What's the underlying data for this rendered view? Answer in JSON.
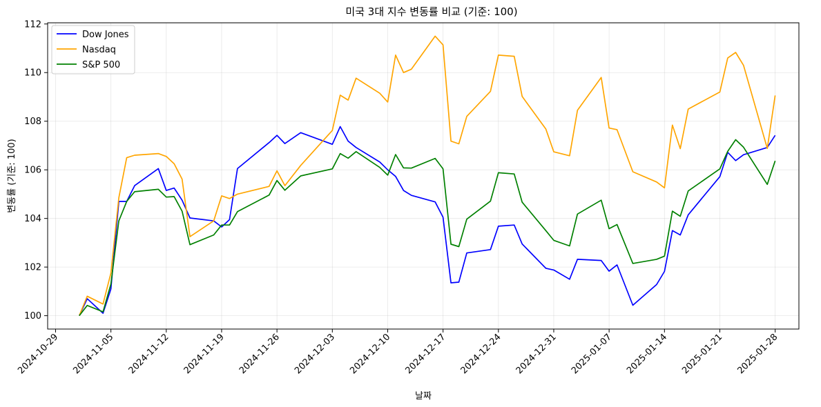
{
  "chart_data": {
    "type": "line",
    "title": "미국 3대 지수 변동률 비교 (기준: 100)",
    "xlabel": "날짜",
    "ylabel": "변동률 (기준: 100)",
    "xlim": [
      "2024-10-28",
      "2025-01-31"
    ],
    "ylim": [
      99.45,
      112.05
    ],
    "x_ticks": [
      "2024-10-29",
      "2024-11-05",
      "2024-11-12",
      "2024-11-19",
      "2024-11-26",
      "2024-12-03",
      "2024-12-10",
      "2024-12-17",
      "2024-12-24",
      "2024-12-31",
      "2025-01-07",
      "2025-01-14",
      "2025-01-21",
      "2025-01-28"
    ],
    "y_ticks": [
      100,
      102,
      104,
      106,
      108,
      110,
      112
    ],
    "grid": true,
    "legend_position": "top-left",
    "dates": [
      "2024-11-01",
      "2024-11-02",
      "2024-11-04",
      "2024-11-05",
      "2024-11-06",
      "2024-11-07",
      "2024-11-08",
      "2024-11-11",
      "2024-11-12",
      "2024-11-13",
      "2024-11-14",
      "2024-11-15",
      "2024-11-18",
      "2024-11-19",
      "2024-11-20",
      "2024-11-21",
      "2024-11-25",
      "2024-11-26",
      "2024-11-27",
      "2024-11-29",
      "2024-12-03",
      "2024-12-04",
      "2024-12-05",
      "2024-12-06",
      "2024-12-09",
      "2024-12-10",
      "2024-12-11",
      "2024-12-12",
      "2024-12-13",
      "2024-12-16",
      "2024-12-17",
      "2024-12-18",
      "2024-12-19",
      "2024-12-20",
      "2024-12-23",
      "2024-12-24",
      "2024-12-26",
      "2024-12-27",
      "2024-12-30",
      "2024-12-31",
      "2025-01-02",
      "2025-01-03",
      "2025-01-06",
      "2025-01-07",
      "2025-01-08",
      "2025-01-10",
      "2025-01-13",
      "2025-01-14",
      "2025-01-15",
      "2025-01-16",
      "2025-01-17",
      "2025-01-21",
      "2025-01-22",
      "2025-01-23",
      "2025-01-24",
      "2025-01-27",
      "2025-01-28"
    ],
    "series": [
      {
        "name": "Dow Jones",
        "color": "#0000ff",
        "values": [
          100.0,
          100.7,
          100.1,
          101.1,
          104.7,
          104.7,
          105.35,
          106.05,
          105.15,
          105.25,
          104.75,
          104.02,
          103.9,
          103.65,
          103.95,
          106.05,
          107.12,
          107.42,
          107.08,
          107.53,
          107.05,
          107.78,
          107.18,
          106.92,
          106.32,
          106.0,
          105.73,
          105.15,
          104.95,
          104.68,
          104.05,
          101.35,
          101.38,
          102.58,
          102.72,
          103.68,
          103.73,
          102.95,
          101.95,
          101.88,
          101.5,
          102.32,
          102.27,
          101.83,
          102.09,
          100.43,
          101.28,
          101.82,
          103.5,
          103.32,
          104.15,
          105.72,
          106.72,
          106.38,
          106.62,
          106.92,
          107.42
        ]
      },
      {
        "name": "Nasdaq",
        "color": "#ffa500",
        "values": [
          100.0,
          100.8,
          100.48,
          101.75,
          104.85,
          106.5,
          106.6,
          106.67,
          106.55,
          106.25,
          105.62,
          103.25,
          103.9,
          104.93,
          104.82,
          105.0,
          105.32,
          105.96,
          105.35,
          106.18,
          107.62,
          109.07,
          108.87,
          109.77,
          109.15,
          108.79,
          110.72,
          110.0,
          110.14,
          111.5,
          111.14,
          107.18,
          107.07,
          108.2,
          109.23,
          110.72,
          110.67,
          109.02,
          107.68,
          106.74,
          106.58,
          108.45,
          109.8,
          107.72,
          107.65,
          105.92,
          105.5,
          105.26,
          107.84,
          106.87,
          108.5,
          109.2,
          110.6,
          110.83,
          110.3,
          106.88,
          109.06
        ]
      },
      {
        "name": "S&P 500",
        "color": "#008000",
        "values": [
          100.0,
          100.42,
          100.16,
          101.3,
          103.9,
          104.7,
          105.1,
          105.2,
          104.88,
          104.9,
          104.3,
          102.92,
          103.32,
          103.73,
          103.73,
          104.28,
          104.96,
          105.56,
          105.16,
          105.75,
          106.04,
          106.67,
          106.48,
          106.75,
          106.1,
          105.78,
          106.63,
          106.08,
          106.07,
          106.47,
          106.04,
          102.94,
          102.84,
          103.97,
          104.71,
          105.88,
          105.83,
          104.67,
          103.5,
          103.1,
          102.87,
          104.18,
          104.75,
          103.58,
          103.75,
          102.15,
          102.32,
          102.45,
          104.3,
          104.09,
          105.13,
          106.04,
          106.76,
          107.24,
          106.93,
          105.4,
          106.37
        ]
      }
    ]
  }
}
